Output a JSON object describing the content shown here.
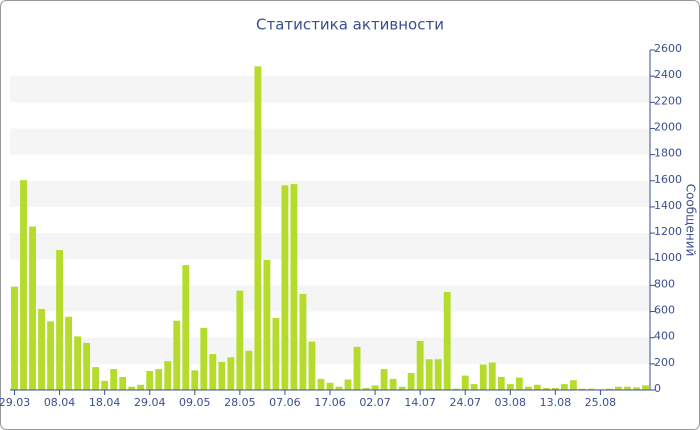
{
  "chart_data": {
    "type": "bar",
    "title": "Статистика активности",
    "y_label": "Сообщений",
    "categories": [
      "29.03",
      null,
      null,
      null,
      null,
      "08.04",
      null,
      null,
      null,
      null,
      "18.04",
      null,
      null,
      null,
      null,
      "29.04",
      null,
      null,
      null,
      null,
      "09.05",
      null,
      null,
      null,
      null,
      "28.05",
      null,
      null,
      null,
      null,
      "07.06",
      null,
      null,
      null,
      null,
      "17.06",
      null,
      null,
      null,
      null,
      "02.07",
      null,
      null,
      null,
      null,
      "14.07",
      null,
      null,
      null,
      null,
      "24.07",
      null,
      null,
      null,
      null,
      "03.08",
      null,
      null,
      null,
      null,
      "13.08",
      null,
      null,
      null,
      null,
      "25.08",
      null,
      null,
      null,
      null,
      null
    ],
    "values": [
      790,
      1605,
      1250,
      620,
      525,
      1070,
      560,
      410,
      360,
      175,
      70,
      160,
      100,
      25,
      40,
      145,
      160,
      220,
      530,
      955,
      150,
      475,
      275,
      215,
      250,
      760,
      300,
      2475,
      995,
      550,
      1565,
      1575,
      735,
      370,
      85,
      55,
      25,
      80,
      330,
      15,
      35,
      160,
      85,
      25,
      130,
      375,
      235,
      235,
      750,
      10,
      110,
      45,
      195,
      210,
      100,
      45,
      95,
      25,
      40,
      15,
      15,
      45,
      75,
      10,
      10,
      5,
      10,
      25,
      25,
      20,
      35
    ],
    "color": "#b5db2c",
    "ylim": [
      0,
      2600
    ],
    "yticks": [
      0,
      200,
      400,
      600,
      800,
      1000,
      1200,
      1400,
      1600,
      1800,
      2000,
      2200,
      2400,
      2600
    ],
    "grid": "bands"
  }
}
